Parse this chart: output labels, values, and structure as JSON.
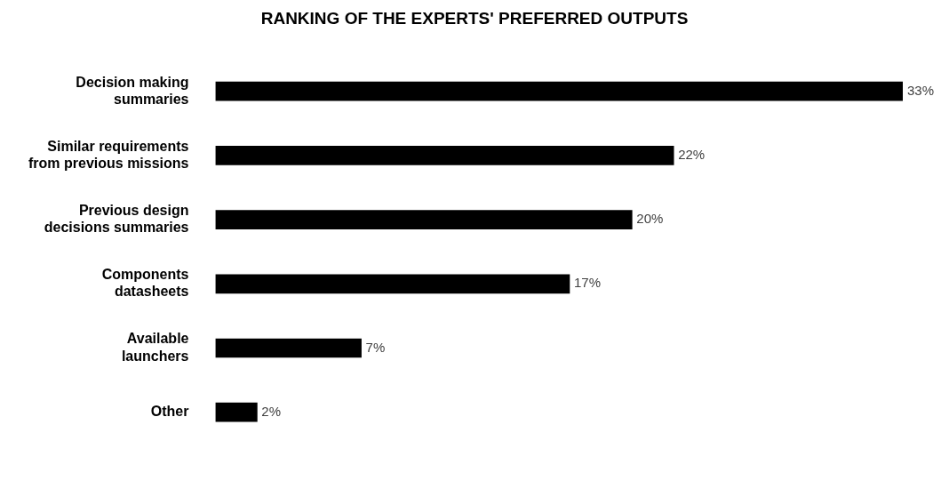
{
  "chart_data": {
    "type": "bar",
    "orientation": "horizontal",
    "title": "RANKING OF THE EXPERTS' PREFERRED OUTPUTS",
    "categories": [
      "Decision making summaries",
      "Similar requirements from previous missions",
      "Previous design decisions summaries",
      "Components datasheets",
      "Available launchers",
      "Other"
    ],
    "values": [
      33,
      22,
      20,
      17,
      7,
      2
    ],
    "value_labels": [
      "33%",
      "22%",
      "20%",
      "17%",
      "7%",
      "2%"
    ],
    "color": "#000000"
  }
}
